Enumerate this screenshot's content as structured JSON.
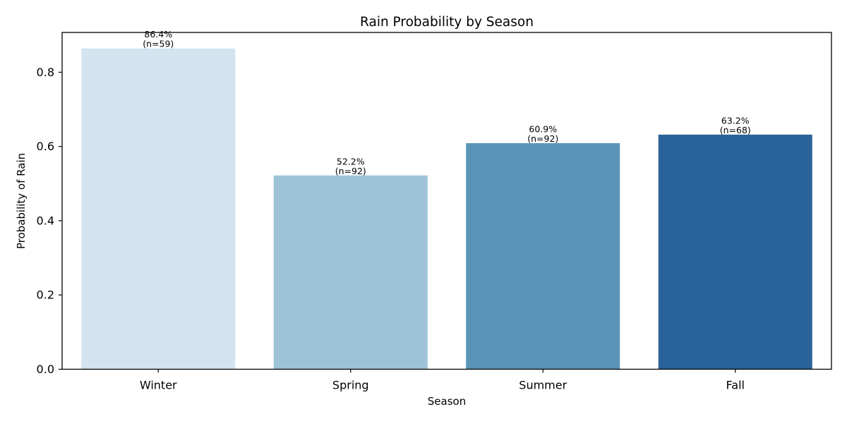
{
  "chart_data": {
    "type": "bar",
    "title": "Rain Probability by Season",
    "xlabel": "Season",
    "ylabel": "Probability of Rain",
    "categories": [
      "Winter",
      "Spring",
      "Summer",
      "Fall"
    ],
    "values": [
      0.864,
      0.522,
      0.609,
      0.632
    ],
    "data_labels": [
      [
        "86.4%",
        "(n=59)"
      ],
      [
        "52.2%",
        "(n=92)"
      ],
      [
        "60.9%",
        "(n=92)"
      ],
      [
        "63.2%",
        "(n=68)"
      ]
    ],
    "colors": [
      "#d3e3f0",
      "#9ec3d6",
      "#5b94b9",
      "#2a6399"
    ],
    "ylim": [
      0,
      0.9072
    ],
    "yticks": [
      0.0,
      0.2,
      0.4,
      0.6,
      0.8
    ],
    "ytick_labels": [
      "0.0",
      "0.2",
      "0.4",
      "0.6",
      "0.8"
    ],
    "grid": false,
    "legend": "none"
  }
}
